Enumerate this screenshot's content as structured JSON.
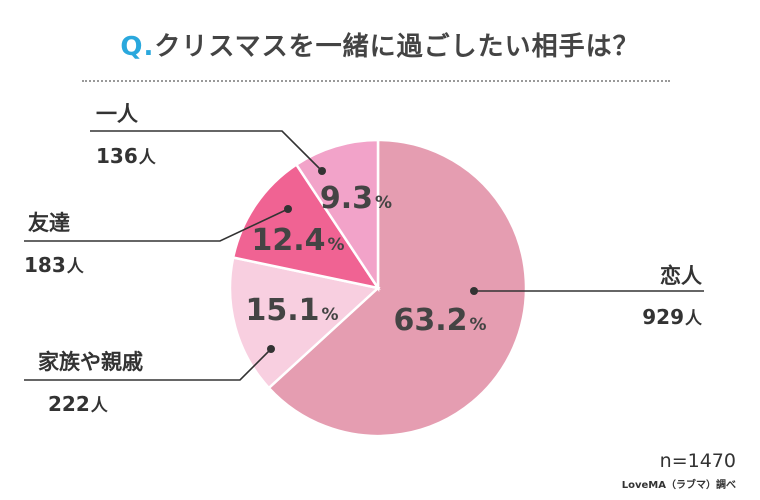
{
  "chart_data": {
    "type": "pie",
    "title_prefix": "Q.",
    "title": "クリスマスを一緒に過ごしたい相手は？",
    "total_label": "n=1470",
    "source": "LoveMA（ラブマ）調べ",
    "pct_unit": "%",
    "count_unit": "人",
    "slices": [
      {
        "name": "恋人",
        "value": 63.2,
        "count": 929,
        "pct_text": "63.2",
        "color": "#e59db1"
      },
      {
        "name": "家族や親戚",
        "value": 15.1,
        "count": 222,
        "pct_text": "15.1",
        "color": "#f8cfe0"
      },
      {
        "name": "友達",
        "value": 12.4,
        "count": 183,
        "pct_text": "12.4",
        "color": "#f06393"
      },
      {
        "name": "一人",
        "value": 9.3,
        "count": 136,
        "pct_text": "9.3",
        "color": "#f2a3c9"
      }
    ]
  }
}
